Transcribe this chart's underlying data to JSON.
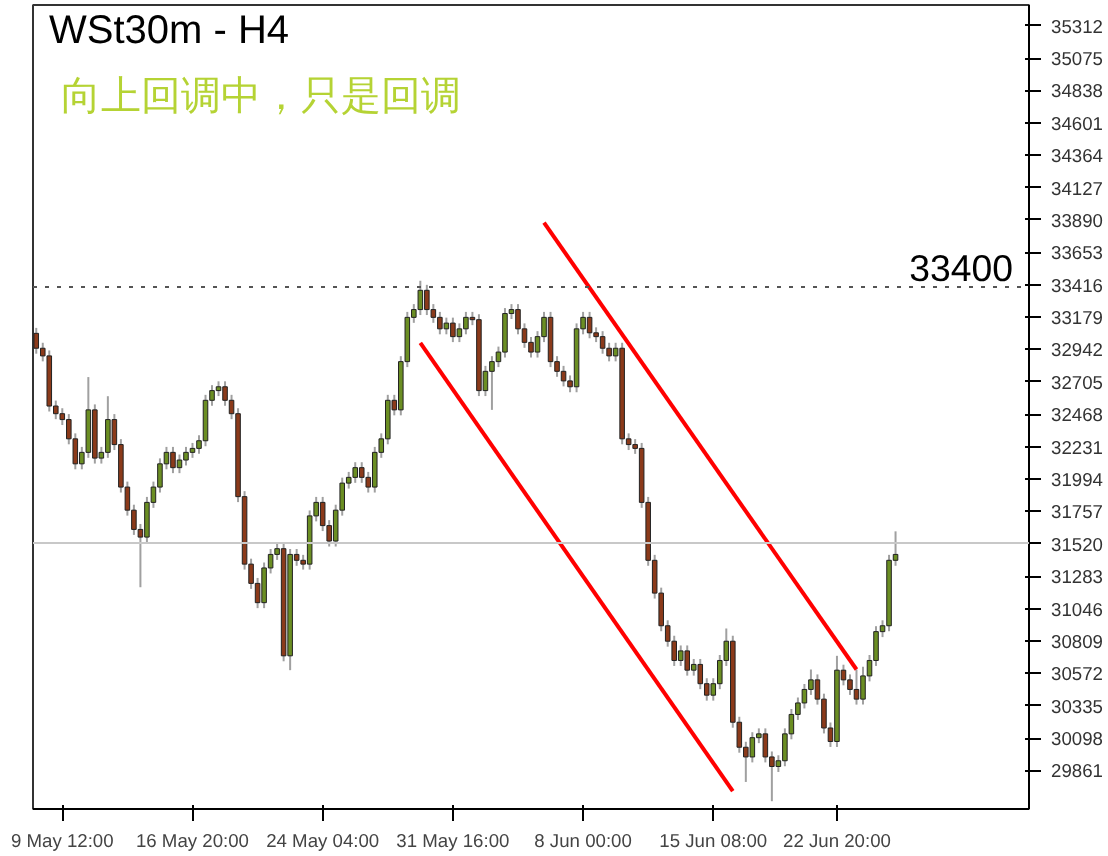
{
  "chart_data": {
    "type": "candlestick",
    "title": "WSt30m - H4",
    "subtitle": "向上回调中，只是回调",
    "categories": [
      null,
      null,
      null,
      null,
      "9 May 12:00",
      null,
      null,
      null,
      null,
      null,
      null,
      null,
      null,
      null,
      null,
      null,
      null,
      null,
      null,
      null,
      null,
      null,
      null,
      null,
      "16 May 20:00",
      null,
      null,
      null,
      null,
      null,
      null,
      null,
      null,
      null,
      null,
      null,
      null,
      null,
      null,
      null,
      null,
      null,
      null,
      null,
      "24 May 04:00",
      null,
      null,
      null,
      null,
      null,
      null,
      null,
      null,
      null,
      null,
      null,
      null,
      null,
      null,
      null,
      null,
      null,
      null,
      null,
      "31 May 16:00",
      null,
      null,
      null,
      null,
      null,
      null,
      null,
      null,
      null,
      null,
      null,
      null,
      null,
      null,
      null,
      null,
      null,
      null,
      null,
      "8 Jun 00:00",
      null,
      null,
      null,
      null,
      null,
      null,
      null,
      null,
      null,
      null,
      null,
      null,
      null,
      null,
      null,
      null,
      null,
      null,
      null,
      "15 Jun 08:00",
      null,
      null,
      null,
      null,
      null,
      null,
      null,
      null,
      null,
      null,
      null,
      null,
      null,
      null,
      null,
      null,
      null,
      null,
      "22 Jun 20:00",
      null,
      null,
      null,
      null,
      null,
      null,
      null,
      null,
      null,
      null,
      null,
      null,
      null,
      null,
      null,
      null,
      null,
      null,
      null,
      null,
      null,
      null,
      null,
      null,
      null,
      null,
      null,
      null,
      null
    ],
    "ohlc": [
      [
        33060,
        33100,
        32911,
        32951
      ],
      [
        32951,
        32991,
        32855,
        32895
      ],
      [
        32895,
        32935,
        32488,
        32528
      ],
      [
        32528,
        32568,
        32432,
        32472
      ],
      [
        32472,
        32512,
        32389,
        32429
      ],
      [
        32429,
        32469,
        32248,
        32288
      ],
      [
        32288,
        32328,
        32065,
        32105
      ],
      [
        32105,
        32229,
        32065,
        32189
      ],
      [
        32189,
        32740,
        32149,
        32500
      ],
      [
        32500,
        32540,
        32107,
        32147
      ],
      [
        32147,
        32229,
        32107,
        32189
      ],
      [
        32189,
        32600,
        32149,
        32429
      ],
      [
        32429,
        32469,
        32206,
        32246
      ],
      [
        32246,
        32286,
        31895,
        31935
      ],
      [
        31935,
        31975,
        31726,
        31766
      ],
      [
        31766,
        31806,
        31585,
        31625
      ],
      [
        31625,
        31665,
        31202,
        31569
      ],
      [
        31569,
        31863,
        31529,
        31823
      ],
      [
        31823,
        31975,
        31783,
        31935
      ],
      [
        31935,
        32145,
        31895,
        32105
      ],
      [
        32105,
        32229,
        32065,
        32189
      ],
      [
        32189,
        32229,
        32037,
        32077
      ],
      [
        32077,
        32173,
        32037,
        32133
      ],
      [
        32133,
        32229,
        32093,
        32189
      ],
      [
        32189,
        32258,
        32149,
        32218
      ],
      [
        32218,
        32314,
        32178,
        32274
      ],
      [
        32274,
        32610,
        32234,
        32570
      ],
      [
        32570,
        32681,
        32530,
        32641
      ],
      [
        32641,
        32709,
        32601,
        32669
      ],
      [
        32669,
        32709,
        32530,
        32570
      ],
      [
        32570,
        32610,
        32432,
        32472
      ],
      [
        32472,
        32512,
        31825,
        31865
      ],
      [
        31865,
        31905,
        31331,
        31371
      ],
      [
        31371,
        31411,
        31190,
        31230
      ],
      [
        31230,
        31270,
        31049,
        31089
      ],
      [
        31089,
        31383,
        31049,
        31343
      ],
      [
        31343,
        31482,
        31303,
        31442
      ],
      [
        31442,
        31524,
        31402,
        31484
      ],
      [
        31484,
        31524,
        30660,
        30700
      ],
      [
        30700,
        31482,
        30595,
        31442
      ],
      [
        31442,
        31482,
        31359,
        31399
      ],
      [
        31399,
        31439,
        31331,
        31371
      ],
      [
        31371,
        31764,
        31331,
        31724
      ],
      [
        31724,
        31863,
        31684,
        31823
      ],
      [
        31823,
        31863,
        31613,
        31653
      ],
      [
        31653,
        31693,
        31500,
        31540
      ],
      [
        31540,
        31806,
        31500,
        31766
      ],
      [
        31766,
        32004,
        31726,
        31964
      ],
      [
        31964,
        32046,
        31924,
        32006
      ],
      [
        32006,
        32117,
        31966,
        32077
      ],
      [
        32077,
        32117,
        31966,
        32006
      ],
      [
        32006,
        32046,
        31895,
        31935
      ],
      [
        31935,
        32229,
        31895,
        32189
      ],
      [
        32189,
        32328,
        32149,
        32288
      ],
      [
        32288,
        32610,
        32248,
        32570
      ],
      [
        32570,
        32610,
        32460,
        32500
      ],
      [
        32500,
        32893,
        32460,
        32853
      ],
      [
        32853,
        33217,
        32813,
        33177
      ],
      [
        33177,
        33274,
        33137,
        33234
      ],
      [
        33234,
        33445,
        33194,
        33375
      ],
      [
        33375,
        33415,
        33194,
        33234
      ],
      [
        33234,
        33274,
        33137,
        33177
      ],
      [
        33177,
        33217,
        33053,
        33093
      ],
      [
        33093,
        33175,
        33053,
        33135
      ],
      [
        33135,
        33175,
        32996,
        33036
      ],
      [
        33036,
        33133,
        32996,
        33093
      ],
      [
        33093,
        33217,
        33053,
        33177
      ],
      [
        33177,
        33217,
        33120,
        33160
      ],
      [
        33160,
        33200,
        32601,
        32641
      ],
      [
        32641,
        32822,
        32601,
        32782
      ],
      [
        32782,
        32893,
        32500,
        32853
      ],
      [
        32853,
        32963,
        32813,
        32923
      ],
      [
        32923,
        33245,
        32883,
        33205
      ],
      [
        33205,
        33274,
        33165,
        33234
      ],
      [
        33234,
        33274,
        33053,
        33093
      ],
      [
        33093,
        33133,
        32954,
        32994
      ],
      [
        32994,
        33034,
        32883,
        32923
      ],
      [
        32923,
        33076,
        32883,
        33036
      ],
      [
        33036,
        33217,
        32996,
        33177
      ],
      [
        33177,
        33217,
        32813,
        32853
      ],
      [
        32853,
        32893,
        32742,
        32782
      ],
      [
        32782,
        32822,
        32672,
        32712
      ],
      [
        32712,
        32752,
        32629,
        32669
      ],
      [
        32669,
        33133,
        32629,
        33093
      ],
      [
        33093,
        33217,
        33053,
        33177
      ],
      [
        33177,
        33217,
        33024,
        33064
      ],
      [
        33064,
        33104,
        32996,
        33036
      ],
      [
        33036,
        33076,
        32911,
        32951
      ],
      [
        32951,
        32991,
        32855,
        32895
      ],
      [
        32895,
        32991,
        32855,
        32951
      ],
      [
        32951,
        32991,
        32248,
        32288
      ],
      [
        32288,
        32328,
        32206,
        32246
      ],
      [
        32246,
        32286,
        32178,
        32218
      ],
      [
        32218,
        32258,
        31783,
        31823
      ],
      [
        31823,
        31863,
        31359,
        31399
      ],
      [
        31399,
        31439,
        31119,
        31159
      ],
      [
        31159,
        31199,
        30880,
        30920
      ],
      [
        30920,
        30960,
        30767,
        30807
      ],
      [
        30807,
        30847,
        30626,
        30666
      ],
      [
        30666,
        30776,
        30626,
        30736
      ],
      [
        30736,
        30776,
        30555,
        30595
      ],
      [
        30595,
        30677,
        30555,
        30637
      ],
      [
        30637,
        30677,
        30456,
        30496
      ],
      [
        30496,
        30536,
        30372,
        30412
      ],
      [
        30412,
        30536,
        30372,
        30496
      ],
      [
        30496,
        30706,
        30456,
        30666
      ],
      [
        30666,
        30900,
        30626,
        30807
      ],
      [
        30807,
        30847,
        30174,
        30214
      ],
      [
        30214,
        30254,
        29991,
        30031
      ],
      [
        30031,
        30071,
        29777,
        29960
      ],
      [
        29960,
        30141,
        29920,
        30101
      ],
      [
        30101,
        30169,
        30061,
        30129
      ],
      [
        30129,
        30169,
        29920,
        29960
      ],
      [
        29960,
        30000,
        29636,
        29890
      ],
      [
        29890,
        29972,
        29850,
        29932
      ],
      [
        29932,
        30169,
        29892,
        30129
      ],
      [
        30129,
        30311,
        30089,
        30271
      ],
      [
        30271,
        30395,
        30231,
        30355
      ],
      [
        30355,
        30494,
        30315,
        30454
      ],
      [
        30454,
        30600,
        30414,
        30524
      ],
      [
        30524,
        30564,
        30343,
        30383
      ],
      [
        30383,
        30423,
        30132,
        30172
      ],
      [
        30172,
        30212,
        30033,
        30073
      ],
      [
        30073,
        30700,
        30033,
        30595
      ],
      [
        30595,
        30635,
        30484,
        30524
      ],
      [
        30524,
        30564,
        30414,
        30454
      ],
      [
        30454,
        30600,
        30343,
        30383
      ],
      [
        30383,
        30620,
        30343,
        30553
      ],
      [
        30553,
        30706,
        30513,
        30666
      ],
      [
        30666,
        30917,
        30626,
        30877
      ],
      [
        30877,
        30960,
        30837,
        30920
      ],
      [
        30920,
        31439,
        30880,
        31399
      ],
      [
        31399,
        31611,
        31359,
        31442
      ],
      null,
      null,
      null,
      null,
      null,
      null,
      null,
      null,
      null,
      null,
      null,
      null,
      null,
      null,
      null,
      null,
      null,
      null,
      null,
      null
    ],
    "series": [
      {
        "type": "line",
        "color": "#ff0000",
        "values": [
          null,
          null,
          null,
          null,
          null,
          null,
          null,
          null,
          null,
          null,
          null,
          null,
          null,
          null,
          null,
          null,
          null,
          null,
          null,
          null,
          null,
          null,
          null,
          null,
          null,
          null,
          null,
          null,
          null,
          null,
          null,
          null,
          null,
          null,
          null,
          null,
          null,
          null,
          null,
          null,
          null,
          null,
          null,
          null,
          null,
          null,
          null,
          null,
          null,
          null,
          null,
          null,
          null,
          null,
          null,
          null,
          null,
          null,
          null,
          null,
          null,
          null,
          null,
          null,
          null,
          null,
          null,
          null,
          null,
          null,
          null,
          null,
          null,
          null,
          null,
          null,
          null,
          null,
          33870,
          null,
          null,
          null,
          null,
          null,
          null,
          null,
          null,
          null,
          null,
          null,
          null,
          null,
          null,
          null,
          null,
          null,
          null,
          null,
          null,
          null,
          null,
          null,
          null,
          null,
          null,
          null,
          null,
          null,
          null,
          null,
          null,
          null,
          null,
          null,
          null,
          null,
          null,
          null,
          null,
          null,
          null,
          null,
          null,
          null,
          null,
          null,
          30600,
          null,
          null,
          null,
          null,
          null,
          null,
          null,
          null,
          null,
          null,
          null,
          null,
          null,
          null,
          null,
          null,
          null,
          null,
          null,
          null,
          null,
          null,
          null,
          null,
          null,
          null
        ]
      },
      {
        "type": "line",
        "color": "#ff0000",
        "values": [
          null,
          null,
          null,
          null,
          null,
          null,
          null,
          null,
          null,
          null,
          null,
          null,
          null,
          null,
          null,
          null,
          null,
          null,
          null,
          null,
          null,
          null,
          null,
          null,
          null,
          null,
          null,
          null,
          null,
          null,
          null,
          null,
          null,
          null,
          null,
          null,
          null,
          null,
          null,
          null,
          null,
          null,
          null,
          null,
          null,
          null,
          null,
          null,
          null,
          null,
          null,
          null,
          null,
          null,
          null,
          null,
          null,
          null,
          null,
          32990,
          null,
          null,
          null,
          null,
          null,
          null,
          null,
          null,
          null,
          null,
          null,
          null,
          null,
          null,
          null,
          null,
          null,
          null,
          null,
          null,
          null,
          null,
          null,
          null,
          null,
          null,
          null,
          null,
          null,
          null,
          null,
          null,
          null,
          null,
          null,
          null,
          null,
          null,
          null,
          null,
          null,
          null,
          null,
          null,
          null,
          null,
          null,
          29710,
          null,
          null,
          null,
          null,
          null,
          null,
          null,
          null,
          null,
          null,
          null,
          null,
          null,
          null,
          null,
          null,
          null,
          null,
          null,
          null,
          null,
          null,
          null,
          null,
          null,
          null,
          null,
          null,
          null,
          null,
          null,
          null,
          null,
          null,
          null,
          null,
          null,
          null,
          null,
          null,
          null,
          null,
          null,
          null,
          null
        ]
      }
    ],
    "ref_lines": [
      {
        "axis": "y",
        "value": 33400,
        "label": "33400",
        "color": "#555555",
        "line_style": "dotted"
      },
      {
        "axis": "y",
        "value": 31526,
        "color": "#c8c8c8",
        "line_style": "solid"
      }
    ],
    "ylim": [
      29579,
      35463
    ],
    "yticks": [
      29861,
      30098,
      30335,
      30572,
      30809,
      31046,
      31283,
      31520,
      31757,
      31994,
      32231,
      32468,
      32705,
      32942,
      33179,
      33416,
      33653,
      33890,
      34127,
      34364,
      34601,
      34838,
      35075,
      35312
    ],
    "grid": false
  }
}
